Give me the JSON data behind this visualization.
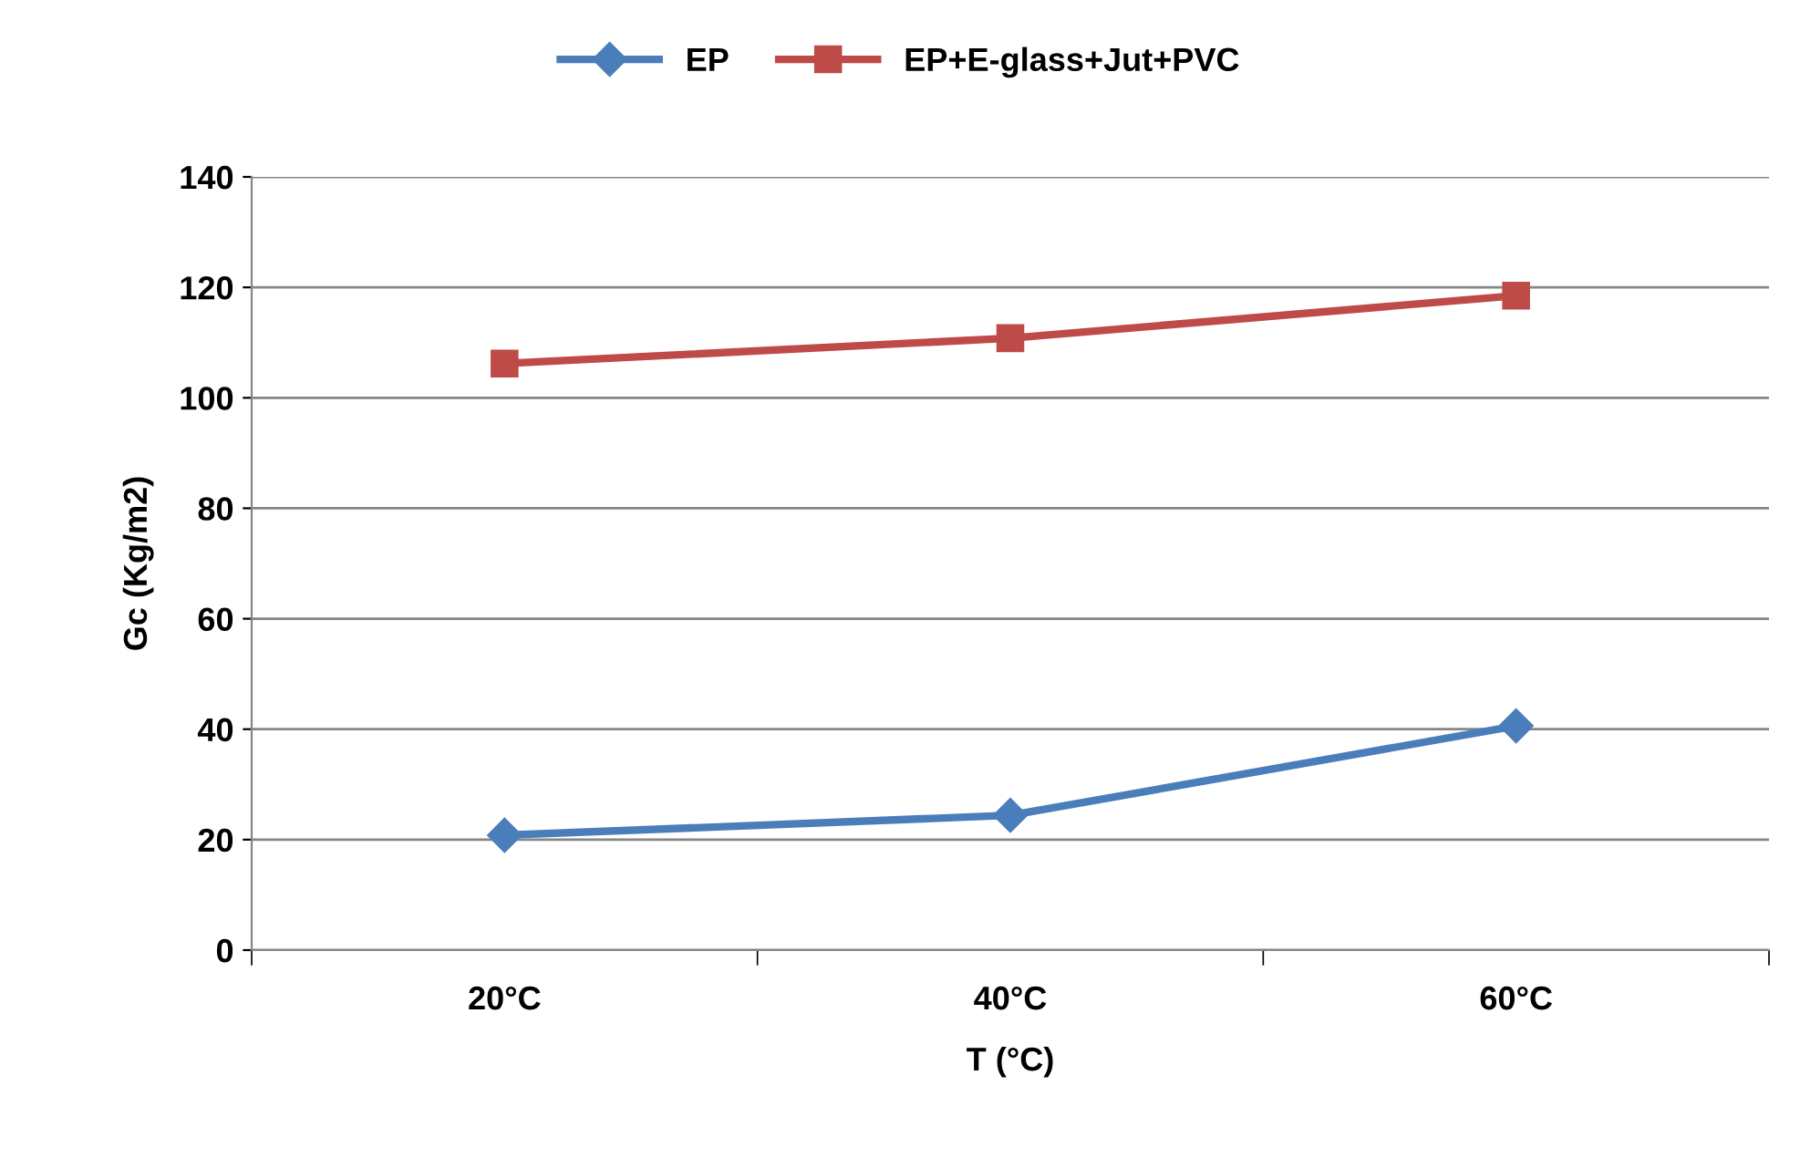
{
  "chart_data": {
    "type": "line",
    "xlabel": "T (°C)",
    "ylabel": "Gc (Kg/m2)",
    "categories": [
      "20°C",
      "40°C",
      "60°C"
    ],
    "series": [
      {
        "name": "EP",
        "color": "#4a7ebb",
        "marker": "diamond",
        "values": [
          20.8,
          24.4,
          40.6
        ]
      },
      {
        "name": "EP+E-glass+Jut+PVC",
        "color": "#be4b48",
        "marker": "square",
        "values": [
          106.2,
          110.8,
          118.5
        ]
      }
    ],
    "ylim": [
      0,
      140
    ],
    "yticks": [
      0,
      20,
      40,
      60,
      80,
      100,
      120,
      140
    ],
    "grid": "y",
    "legend": "top"
  }
}
